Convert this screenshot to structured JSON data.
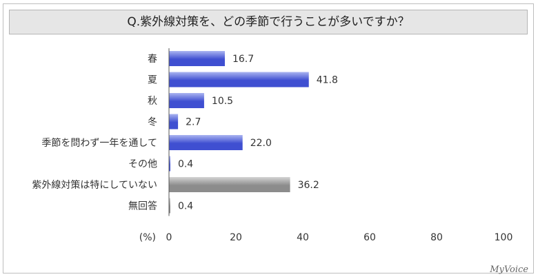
{
  "title": "Q.紫外線対策を、どの季節で行うことが多いですか？",
  "logo": "MyVoice",
  "colors": {
    "blue_dark": "#3f4fd1",
    "blue_light": "#aab4f0",
    "gray_dark": "#8c8c8c",
    "gray_light": "#d4d4d4"
  },
  "chart_data": {
    "type": "bar",
    "orientation": "horizontal",
    "unit_label": "(%)",
    "categories": [
      "春",
      "夏",
      "秋",
      "冬",
      "季節を問わず一年を通して",
      "その他",
      "紫外線対策は特にしていない",
      "無回答"
    ],
    "values": [
      16.7,
      41.8,
      10.5,
      2.7,
      22.0,
      0.4,
      36.2,
      0.4
    ],
    "value_labels": [
      "16.7",
      "41.8",
      "10.5",
      "2.7",
      "22.0",
      "0.4",
      "36.2",
      "0.4"
    ],
    "bar_colors": [
      "blue",
      "blue",
      "blue",
      "blue",
      "blue",
      "blue",
      "gray",
      "gray"
    ],
    "xlim": [
      0,
      100
    ],
    "x_ticks": [
      "0",
      "20",
      "40",
      "60",
      "80",
      "100"
    ],
    "grid": false
  }
}
